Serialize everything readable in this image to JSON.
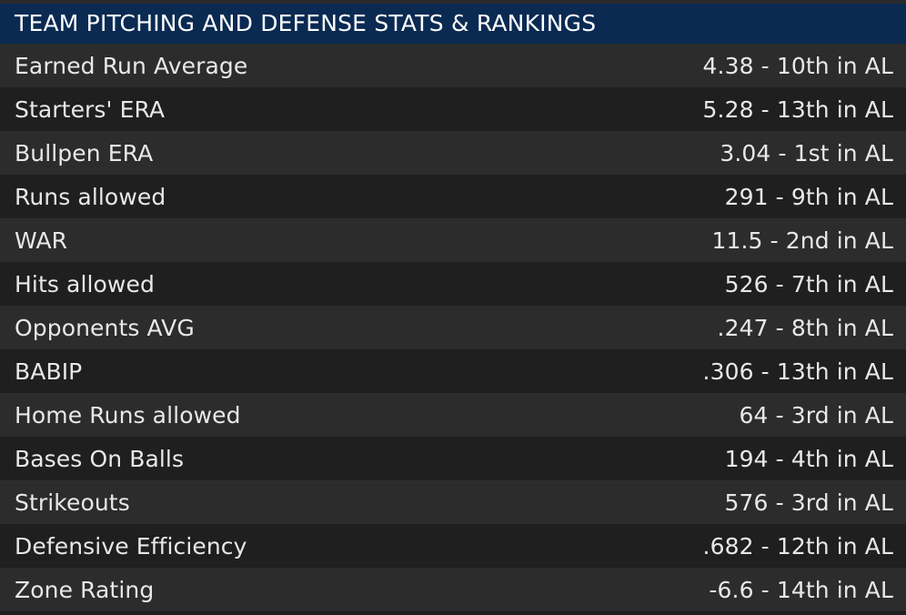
{
  "header": {
    "title": "TEAM PITCHING AND DEFENSE STATS & RANKINGS"
  },
  "stats": [
    {
      "label": "Earned Run Average",
      "value": "4.38 - 10th in AL"
    },
    {
      "label": "Starters' ERA",
      "value": "5.28 - 13th in AL"
    },
    {
      "label": "Bullpen ERA",
      "value": "3.04 - 1st in AL"
    },
    {
      "label": "Runs allowed",
      "value": "291 - 9th in AL"
    },
    {
      "label": "WAR",
      "value": "11.5 - 2nd in AL"
    },
    {
      "label": "Hits allowed",
      "value": "526 - 7th in AL"
    },
    {
      "label": "Opponents AVG",
      "value": ".247 - 8th in AL"
    },
    {
      "label": "BABIP",
      "value": ".306 - 13th in AL"
    },
    {
      "label": "Home Runs allowed",
      "value": "64 - 3rd in AL"
    },
    {
      "label": "Bases On Balls",
      "value": "194 - 4th in AL"
    },
    {
      "label": "Strikeouts",
      "value": "576 - 3rd in AL"
    },
    {
      "label": "Defensive Efficiency",
      "value": ".682 - 12th in AL"
    },
    {
      "label": "Zone Rating",
      "value": "-6.6 - 14th in AL"
    }
  ],
  "colors": {
    "header_bg": "#0a2a52",
    "row_odd": "#2c2c2c",
    "row_even": "#1f1f1f",
    "text": "#e8e8e8"
  }
}
